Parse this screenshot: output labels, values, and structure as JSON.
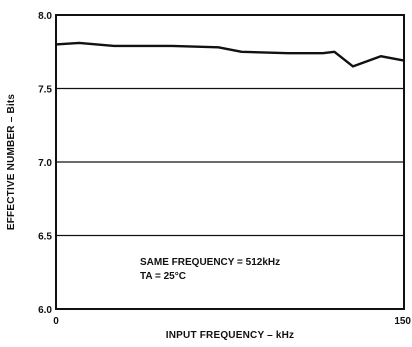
{
  "chart_data": {
    "type": "line",
    "xlabel": "INPUT FREQUENCY – kHz",
    "ylabel": "EFFECTIVE NUMBER – Bits",
    "xlim": [
      0,
      150
    ],
    "ylim": [
      6.0,
      8.0
    ],
    "x_ticks": [
      {
        "value": 0,
        "label": "0"
      },
      {
        "value": 150,
        "label": "150"
      }
    ],
    "y_ticks": [
      {
        "value": 6.0,
        "label": "6.0"
      },
      {
        "value": 6.5,
        "label": "6.5"
      },
      {
        "value": 7.0,
        "label": "7.0"
      },
      {
        "value": 7.5,
        "label": "7.5"
      },
      {
        "value": 8.0,
        "label": "8.0"
      }
    ],
    "grid": "horizontal",
    "series": [
      {
        "x": [
          0,
          10,
          25,
          50,
          70,
          80,
          100,
          115,
          120,
          128,
          140,
          150
        ],
        "y": [
          7.8,
          7.81,
          7.79,
          7.79,
          7.78,
          7.75,
          7.74,
          7.74,
          7.75,
          7.65,
          7.72,
          7.69
        ]
      }
    ],
    "annotations": [
      "SAME FREQUENCY = 512kHz",
      "TA = 25°C"
    ]
  }
}
